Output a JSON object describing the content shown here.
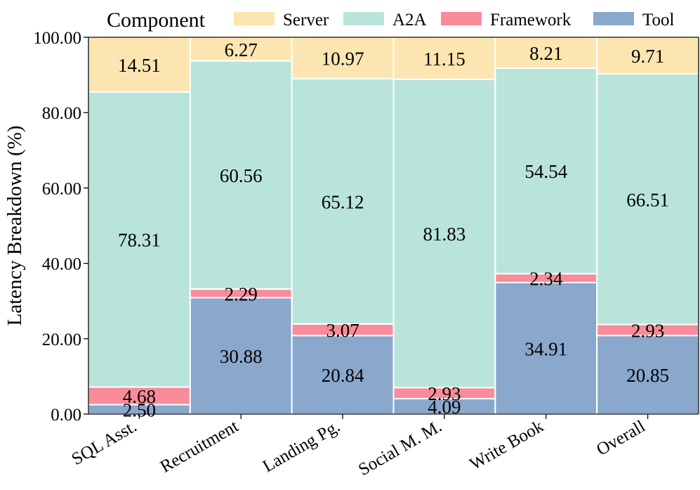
{
  "chart_data": {
    "type": "bar",
    "stacked": true,
    "ylabel": "Latency Breakdown (%)",
    "xlabel": "",
    "ylim": [
      0,
      100
    ],
    "yticks": [
      "0.00",
      "20.00",
      "40.00",
      "60.00",
      "80.00",
      "100.00"
    ],
    "categories": [
      "SQL Asst.",
      "Recruitment",
      "Landing Pg.",
      "Social M. M.",
      "Write Book",
      "Overall"
    ],
    "series": [
      {
        "name": "Tool",
        "color": "#8aa7cc",
        "values": [
          2.5,
          30.88,
          20.84,
          4.09,
          34.91,
          20.85
        ],
        "labels": [
          "2.50",
          "30.88",
          "20.84",
          "4.09",
          "34.91",
          "20.85"
        ]
      },
      {
        "name": "Framework",
        "color": "#f98b9a",
        "values": [
          4.68,
          2.29,
          3.07,
          2.93,
          2.34,
          2.93
        ],
        "labels": [
          "4.68",
          "2.29",
          "3.07",
          "2.93",
          "2.34",
          "2.93"
        ]
      },
      {
        "name": "A2A",
        "color": "#b9e4dc",
        "values": [
          78.31,
          60.56,
          65.12,
          81.83,
          54.54,
          66.51
        ],
        "labels": [
          "78.31",
          "60.56",
          "65.12",
          "81.83",
          "54.54",
          "66.51"
        ]
      },
      {
        "name": "Server",
        "color": "#fce5b0",
        "values": [
          14.51,
          6.27,
          10.97,
          11.15,
          8.21,
          9.71
        ],
        "labels": [
          "14.51",
          "6.27",
          "10.97",
          "11.15",
          "8.21",
          "9.71"
        ]
      }
    ],
    "legend": {
      "title": "Component",
      "placement": "top",
      "order": [
        "Server",
        "A2A",
        "Framework",
        "Tool"
      ]
    },
    "grid": false
  }
}
